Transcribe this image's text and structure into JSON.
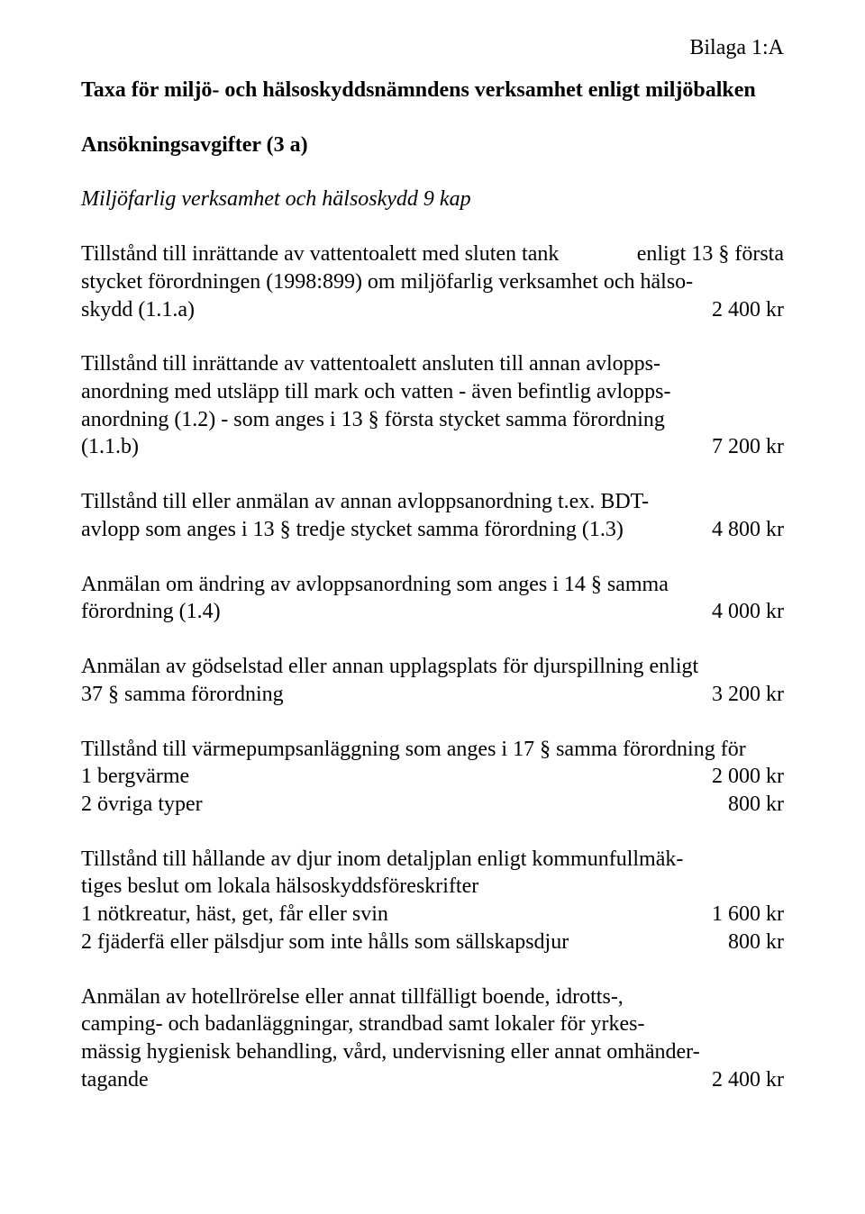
{
  "topright": "Bilaga 1:A",
  "title": "Taxa för miljö- och hälsoskyddsnämndens verksamhet enligt miljöbalken",
  "section_title": "Ansökningsavgifter (3 a)",
  "chapter_title": "Miljöfarlig verksamhet och hälsoskydd 9 kap",
  "entries": {
    "e1": {
      "p1": "Tillstånd till inrättande av vattentoalett med sluten tank",
      "p2": "enligt 13 § första",
      "p3": "stycket förordningen (1998:899) om miljöfarlig verksamhet och hälso-",
      "lastLeft": "skydd (1.1.a)",
      "amount": "2 400 kr"
    },
    "e2": {
      "p1": "Tillstånd till inrättande av vattentoalett ansluten till annan avlopps-",
      "p2": "anordning med utsläpp till mark och vatten - även befintlig avlopps-",
      "p3": "anordning (1.2) - som anges i 13 § första stycket samma förordning",
      "lastLeft": " (1.1.b)",
      "amount": "7 200 kr"
    },
    "e3": {
      "p1": "Tillstånd till eller anmälan av annan avloppsanordning t.ex. BDT-",
      "lastLeft": "avlopp som anges i 13 § tredje stycket samma förordning (1.3)",
      "amount": "4 800 kr"
    },
    "e4": {
      "p1": "Anmälan om ändring av avloppsanordning som anges i 14 § samma",
      "lastLeft": "förordning (1.4)",
      "amount": "4 000 kr"
    },
    "e5": {
      "p1": "Anmälan av gödselstad eller annan upplagsplats för djurspillning enligt",
      "lastLeft": "37 § samma förordning",
      "amount": "3 200 kr"
    },
    "e6": {
      "intro": "Tillstånd till värmepumpsanläggning som anges i 17 § samma förordning för",
      "sub1Left": "1  bergvärme",
      "sub1Amount": "2 000 kr",
      "sub2Left": "2  övriga typer",
      "sub2Amount": "800 kr"
    },
    "e7": {
      "p1": "Tillstånd till hållande av djur inom detaljplan enligt kommunfullmäk-",
      "p2": "tiges beslut om lokala hälsoskyddsföreskrifter",
      "sub1Left": "1  nötkreatur, häst, get, får eller svin",
      "sub1Amount": "1 600 kr",
      "sub2Left": "2  fjäderfä eller pälsdjur som inte hålls som sällskapsdjur",
      "sub2Amount": "800 kr"
    },
    "e8": {
      "p1": "Anmälan av hotellrörelse eller annat tillfälligt boende, idrotts-,",
      "p2": "camping- och badanläggningar, strandbad samt lokaler för yrkes-",
      "p3": "mässig hygienisk behandling, vård, undervisning eller annat omhänder-",
      "lastLeft": "tagande",
      "amount": "2 400 kr"
    }
  }
}
